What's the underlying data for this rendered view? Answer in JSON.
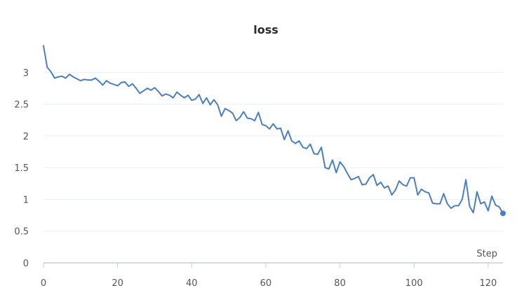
{
  "chart_data": {
    "type": "line",
    "title": "loss",
    "xlabel": "Step",
    "ylabel": "",
    "xlim": [
      0,
      124
    ],
    "ylim": [
      0,
      3.5
    ],
    "x_ticks": [
      0,
      20,
      40,
      60,
      80,
      100,
      120
    ],
    "y_ticks": [
      0,
      0.5,
      1,
      1.5,
      2,
      2.5,
      3
    ],
    "x_tick_labels": [
      "0",
      "20",
      "40",
      "60",
      "80",
      "100",
      "120"
    ],
    "y_tick_labels": [
      "0",
      "0.5",
      "1",
      "1.5",
      "2",
      "2.5",
      "3"
    ],
    "grid": true,
    "line_color": "#4a7fc1",
    "series": [
      {
        "values": [
          3.42,
          3.08,
          3.01,
          2.91,
          2.93,
          2.94,
          2.91,
          2.97,
          2.93,
          2.9,
          2.87,
          2.89,
          2.88,
          2.88,
          2.91,
          2.86,
          2.8,
          2.87,
          2.83,
          2.81,
          2.79,
          2.84,
          2.85,
          2.78,
          2.82,
          2.75,
          2.67,
          2.71,
          2.75,
          2.72,
          2.76,
          2.7,
          2.63,
          2.66,
          2.64,
          2.6,
          2.69,
          2.64,
          2.6,
          2.64,
          2.56,
          2.58,
          2.65,
          2.51,
          2.6,
          2.49,
          2.57,
          2.49,
          2.31,
          2.43,
          2.4,
          2.36,
          2.24,
          2.29,
          2.38,
          2.28,
          2.27,
          2.24,
          2.37,
          2.18,
          2.16,
          2.11,
          2.19,
          2.11,
          2.12,
          1.94,
          2.08,
          1.92,
          1.88,
          1.92,
          1.82,
          1.8,
          1.87,
          1.72,
          1.71,
          1.82,
          1.5,
          1.48,
          1.62,
          1.42,
          1.59,
          1.52,
          1.41,
          1.31,
          1.33,
          1.36,
          1.23,
          1.24,
          1.34,
          1.39,
          1.22,
          1.27,
          1.18,
          1.21,
          1.07,
          1.15,
          1.29,
          1.23,
          1.21,
          1.34,
          1.34,
          1.07,
          1.16,
          1.12,
          1.1,
          0.94,
          0.93,
          0.93,
          1.09,
          0.93,
          0.86,
          0.9,
          0.9,
          1.0,
          1.31,
          0.89,
          0.79,
          1.12,
          0.93,
          0.96,
          0.82,
          1.05,
          0.91,
          0.88,
          0.78
        ]
      }
    ]
  }
}
